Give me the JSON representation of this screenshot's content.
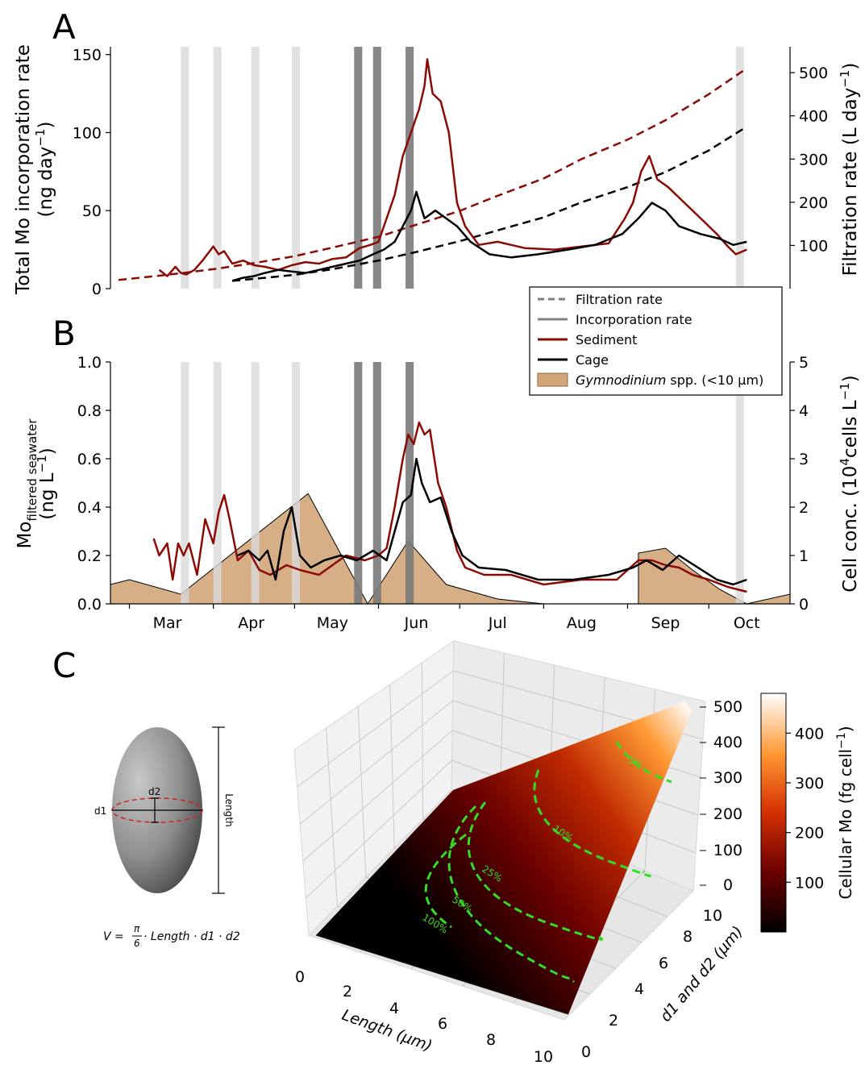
{
  "chart_data": [
    {
      "panel": "A",
      "type": "line",
      "ylabel_left_line1": "Total Mo incorporation rate",
      "ylabel_left_line2": "(ng day",
      "ylabel_left_exp": "−1",
      "ylabel_right": "Filtration rate (L day",
      "ylabel_right_exp": "−1",
      "ylim_left": [
        0,
        155
      ],
      "yticks_left": [
        0,
        50,
        100,
        150
      ],
      "ylim_right": [
        0,
        560
      ],
      "yticks_right": [
        100,
        200,
        300,
        400,
        500
      ],
      "xlim": [
        "2019-02-22",
        "2019-10-31"
      ],
      "shaded_light": [
        [
          "2019-03-20",
          "2019-03-23"
        ],
        [
          "2019-04-01",
          "2019-04-04"
        ],
        [
          "2019-04-15",
          "2019-04-18"
        ],
        [
          "2019-04-30",
          "2019-05-03"
        ],
        [
          "2019-10-11",
          "2019-10-14"
        ]
      ],
      "shaded_dark": [
        [
          "2019-05-23",
          "2019-05-26"
        ],
        [
          "2019-05-30",
          "2019-06-02"
        ],
        [
          "2019-06-11",
          "2019-06-14"
        ]
      ],
      "series": [
        {
          "name": "Sediment",
          "kind": "incorporation",
          "color": "#8b0b04",
          "x": [
            "2019-03-12",
            "2019-03-15",
            "2019-03-18",
            "2019-03-20",
            "2019-03-22",
            "2019-03-25",
            "2019-03-28",
            "2019-04-01",
            "2019-04-03",
            "2019-04-05",
            "2019-04-08",
            "2019-04-12",
            "2019-04-16",
            "2019-04-20",
            "2019-04-25",
            "2019-04-30",
            "2019-05-05",
            "2019-05-10",
            "2019-05-15",
            "2019-05-20",
            "2019-05-25",
            "2019-05-29",
            "2019-06-01",
            "2019-06-04",
            "2019-06-07",
            "2019-06-10",
            "2019-06-13",
            "2019-06-16",
            "2019-06-18",
            "2019-06-19",
            "2019-06-21",
            "2019-06-24",
            "2019-06-27",
            "2019-06-30",
            "2019-07-03",
            "2019-07-08",
            "2019-07-15",
            "2019-07-25",
            "2019-08-05",
            "2019-08-15",
            "2019-08-25",
            "2019-08-31",
            "2019-09-03",
            "2019-09-06",
            "2019-09-09",
            "2019-09-12",
            "2019-09-16",
            "2019-09-22",
            "2019-09-28",
            "2019-10-04",
            "2019-10-08",
            "2019-10-11",
            "2019-10-15"
          ],
          "y": [
            12,
            8,
            14,
            10,
            9,
            12,
            18,
            27,
            22,
            24,
            16,
            18,
            15,
            14,
            12,
            15,
            17,
            16,
            19,
            20,
            26,
            28,
            30,
            45,
            60,
            85,
            100,
            115,
            130,
            147,
            125,
            120,
            100,
            55,
            40,
            28,
            30,
            26,
            25,
            27,
            29,
            45,
            55,
            75,
            85,
            70,
            65,
            55,
            45,
            35,
            27,
            22,
            25
          ]
        },
        {
          "name": "Cage",
          "kind": "incorporation",
          "color": "#000000",
          "x": [
            "2019-04-08",
            "2019-04-12",
            "2019-04-16",
            "2019-04-20",
            "2019-04-25",
            "2019-04-30",
            "2019-05-05",
            "2019-05-10",
            "2019-05-15",
            "2019-05-20",
            "2019-05-25",
            "2019-05-30",
            "2019-06-03",
            "2019-06-07",
            "2019-06-10",
            "2019-06-13",
            "2019-06-15",
            "2019-06-18",
            "2019-06-22",
            "2019-06-26",
            "2019-06-30",
            "2019-07-05",
            "2019-07-12",
            "2019-07-20",
            "2019-07-30",
            "2019-08-10",
            "2019-08-20",
            "2019-08-30",
            "2019-09-05",
            "2019-09-10",
            "2019-09-15",
            "2019-09-20",
            "2019-09-28",
            "2019-10-05",
            "2019-10-10",
            "2019-10-15"
          ],
          "y": [
            5,
            7,
            8,
            10,
            12,
            11,
            10,
            12,
            14,
            16,
            18,
            22,
            25,
            30,
            40,
            50,
            62,
            45,
            50,
            45,
            40,
            30,
            22,
            20,
            22,
            25,
            28,
            35,
            45,
            55,
            50,
            40,
            35,
            32,
            28,
            30
          ]
        },
        {
          "name": "Sediment",
          "kind": "filtration",
          "color": "#8b0b04",
          "x": [
            "2019-02-25",
            "2019-03-15",
            "2019-04-01",
            "2019-04-15",
            "2019-05-01",
            "2019-05-15",
            "2019-06-01",
            "2019-06-15",
            "2019-07-01",
            "2019-07-15",
            "2019-08-01",
            "2019-08-15",
            "2019-09-01",
            "2019-09-15",
            "2019-10-01",
            "2019-10-15"
          ],
          "y": [
            20,
            32,
            45,
            58,
            75,
            95,
            120,
            148,
            180,
            215,
            255,
            300,
            345,
            390,
            450,
            510
          ]
        },
        {
          "name": "Cage",
          "kind": "filtration",
          "color": "#000000",
          "x": [
            "2019-04-08",
            "2019-04-20",
            "2019-05-01",
            "2019-05-15",
            "2019-06-01",
            "2019-06-15",
            "2019-07-01",
            "2019-07-15",
            "2019-08-01",
            "2019-08-15",
            "2019-09-01",
            "2019-09-15",
            "2019-10-01",
            "2019-10-15"
          ],
          "y": [
            18,
            25,
            32,
            45,
            65,
            85,
            110,
            135,
            165,
            200,
            235,
            270,
            320,
            375
          ]
        }
      ],
      "legend": {
        "placement": "lower right, between panels A and B",
        "entries": [
          {
            "label": "Filtration rate",
            "style": "dashed",
            "color": "#808080"
          },
          {
            "label": "Incorporation rate",
            "style": "solid",
            "color": "#808080"
          },
          {
            "label": "Sediment",
            "style": "solid",
            "color": "#8b0b04"
          },
          {
            "label": "Cage",
            "style": "solid",
            "color": "#000000"
          },
          {
            "label_italic": "Gymnodinium",
            "label_rest": " spp. (<10 µm)",
            "style": "patch",
            "color": "#d2a679"
          }
        ]
      }
    },
    {
      "panel": "B",
      "type": "line",
      "ylabel_left_line1_main": "Mo",
      "ylabel_left_line1_sub": "filtered seawater",
      "ylabel_left_line2": "(ng L",
      "ylabel_left_exp": "−1",
      "ylabel_right_pre": "Cell conc. (10",
      "ylabel_right_sup1": "4",
      "ylabel_right_mid": "cells L",
      "ylabel_right_sup2": "−1",
      "ylim_left": [
        0,
        1.0
      ],
      "yticks_left": [
        "0.0",
        "0.2",
        "0.4",
        "0.6",
        "0.8",
        "1.0"
      ],
      "ylim_right": [
        0,
        5
      ],
      "yticks_right": [
        0,
        1,
        2,
        3,
        4,
        5
      ],
      "xlim": [
        "2019-02-22",
        "2019-10-31"
      ],
      "xticks": [
        {
          "label": "Mar",
          "date": "2019-03-15"
        },
        {
          "label": "Apr",
          "date": "2019-04-15"
        },
        {
          "label": "May",
          "date": "2019-05-15"
        },
        {
          "label": "Jun",
          "date": "2019-06-15"
        },
        {
          "label": "Jul",
          "date": "2019-07-15"
        },
        {
          "label": "Aug",
          "date": "2019-08-15"
        },
        {
          "label": "Sep",
          "date": "2019-09-15"
        },
        {
          "label": "Oct",
          "date": "2019-10-15"
        }
      ],
      "xtick_marks": [
        "2019-03-01",
        "2019-04-01",
        "2019-05-01",
        "2019-06-01",
        "2019-07-01",
        "2019-08-01",
        "2019-09-01",
        "2019-10-01"
      ],
      "shaded_light": [
        [
          "2019-03-20",
          "2019-03-23"
        ],
        [
          "2019-04-01",
          "2019-04-04"
        ],
        [
          "2019-04-15",
          "2019-04-18"
        ],
        [
          "2019-04-30",
          "2019-05-03"
        ],
        [
          "2019-10-11",
          "2019-10-14"
        ]
      ],
      "shaded_dark": [
        [
          "2019-05-23",
          "2019-05-26"
        ],
        [
          "2019-05-30",
          "2019-06-02"
        ],
        [
          "2019-06-11",
          "2019-06-14"
        ]
      ],
      "area": {
        "name": "Gymnodinium spp. (<10 µm)",
        "color": "#d2a679",
        "segments": [
          {
            "x": [
              "2019-02-22",
              "2019-03-01",
              "2019-03-20",
              "2019-05-06",
              "2019-05-28"
            ],
            "y": [
              0.4,
              0.5,
              0.2,
              2.28,
              0.0
            ]
          },
          {
            "x": [
              "2019-05-28",
              "2019-06-12",
              "2019-06-26",
              "2019-07-15",
              "2019-08-01"
            ],
            "y": [
              0.0,
              1.3,
              0.4,
              0.1,
              0.0
            ]
          },
          {
            "x": [
              "2019-09-05",
              "2019-09-15",
              "2019-09-25",
              "2019-10-05",
              "2019-10-15",
              "2019-10-31"
            ],
            "y": [
              1.05,
              1.15,
              0.7,
              0.3,
              0.0,
              0.2
            ]
          }
        ]
      },
      "series": [
        {
          "name": "Sediment",
          "color": "#8b0b04",
          "x": [
            "2019-03-10",
            "2019-03-12",
            "2019-03-15",
            "2019-03-17",
            "2019-03-19",
            "2019-03-21",
            "2019-03-23",
            "2019-03-26",
            "2019-03-29",
            "2019-04-01",
            "2019-04-03",
            "2019-04-05",
            "2019-04-07",
            "2019-04-10",
            "2019-04-14",
            "2019-04-18",
            "2019-04-22",
            "2019-04-28",
            "2019-05-03",
            "2019-05-10",
            "2019-05-20",
            "2019-05-27",
            "2019-06-01",
            "2019-06-04",
            "2019-06-07",
            "2019-06-10",
            "2019-06-12",
            "2019-06-14",
            "2019-06-16",
            "2019-06-18",
            "2019-06-20",
            "2019-06-23",
            "2019-06-26",
            "2019-06-30",
            "2019-07-03",
            "2019-07-10",
            "2019-07-20",
            "2019-08-01",
            "2019-08-15",
            "2019-08-28",
            "2019-09-05",
            "2019-09-10",
            "2019-09-15",
            "2019-09-20",
            "2019-09-25",
            "2019-10-01",
            "2019-10-08",
            "2019-10-15"
          ],
          "y": [
            0.27,
            0.2,
            0.25,
            0.1,
            0.25,
            0.2,
            0.25,
            0.12,
            0.35,
            0.25,
            0.38,
            0.45,
            0.35,
            0.18,
            0.22,
            0.14,
            0.12,
            0.16,
            0.14,
            0.12,
            0.2,
            0.18,
            0.2,
            0.23,
            0.4,
            0.6,
            0.7,
            0.66,
            0.75,
            0.7,
            0.72,
            0.5,
            0.4,
            0.22,
            0.15,
            0.12,
            0.12,
            0.08,
            0.1,
            0.1,
            0.18,
            0.18,
            0.16,
            0.15,
            0.12,
            0.1,
            0.07,
            0.05
          ]
        },
        {
          "name": "Cage",
          "color": "#000000",
          "x": [
            "2019-04-10",
            "2019-04-14",
            "2019-04-18",
            "2019-04-21",
            "2019-04-24",
            "2019-04-27",
            "2019-04-30",
            "2019-05-03",
            "2019-05-07",
            "2019-05-12",
            "2019-05-18",
            "2019-05-24",
            "2019-05-30",
            "2019-06-04",
            "2019-06-07",
            "2019-06-10",
            "2019-06-13",
            "2019-06-15",
            "2019-06-17",
            "2019-06-20",
            "2019-06-24",
            "2019-06-28",
            "2019-07-02",
            "2019-07-08",
            "2019-07-18",
            "2019-07-30",
            "2019-08-12",
            "2019-08-25",
            "2019-09-03",
            "2019-09-08",
            "2019-09-14",
            "2019-09-20",
            "2019-09-27",
            "2019-10-04",
            "2019-10-10",
            "2019-10-15"
          ],
          "y": [
            0.2,
            0.22,
            0.18,
            0.22,
            0.1,
            0.3,
            0.4,
            0.2,
            0.15,
            0.18,
            0.2,
            0.18,
            0.22,
            0.18,
            0.3,
            0.42,
            0.45,
            0.6,
            0.5,
            0.42,
            0.44,
            0.3,
            0.2,
            0.15,
            0.14,
            0.1,
            0.1,
            0.12,
            0.15,
            0.18,
            0.14,
            0.2,
            0.15,
            0.1,
            0.08,
            0.1
          ]
        }
      ]
    },
    {
      "panel": "C",
      "type": "surface",
      "xlabel": "Length (µm)",
      "ylabel": "d1 and d2 (µm)",
      "xticks": [
        0,
        2,
        4,
        6,
        8,
        10
      ],
      "yticks": [
        0,
        2,
        4,
        6,
        8,
        10
      ],
      "zticks": [
        0,
        100,
        200,
        300,
        400,
        500
      ],
      "xlim": [
        0,
        10
      ],
      "ylim": [
        0,
        10
      ],
      "zlim": [
        0,
        520
      ],
      "colormap": "gist_heat",
      "colorbar_label": "Cellular Mo (fg cell",
      "colorbar_label_exp": "−1",
      "colorbar_ticks": [
        100,
        200,
        300,
        400
      ],
      "contour_color": "#33dd22",
      "contour_labels": [
        "100%",
        "50%",
        "25%",
        "10%",
        "5%"
      ]
    }
  ],
  "panel_labels": [
    "A",
    "B",
    "C"
  ],
  "ellipsoid_diagram": {
    "label_length": "Length",
    "label_d1": "d1",
    "label_d2": "d2",
    "formula_lhs": "V = ",
    "formula_num": "π",
    "formula_den": "6",
    "formula_rhs": " · Length · d1 · d2"
  }
}
